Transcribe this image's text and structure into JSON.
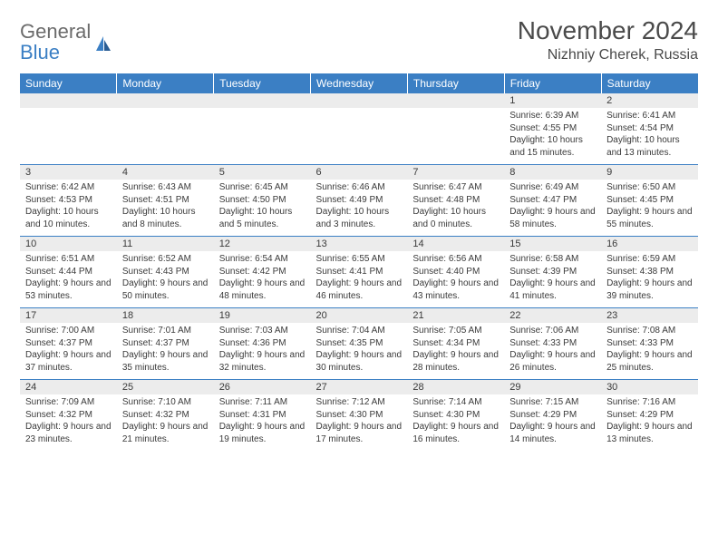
{
  "brand": {
    "line1": "General",
    "line2": "Blue"
  },
  "title": "November 2024",
  "location": "Nizhniy Cherek, Russia",
  "colors": {
    "header_bg": "#3b7fc4",
    "header_text": "#ffffff",
    "daynum_bg": "#ececec",
    "border": "#3b7fc4",
    "text": "#3a3a3a",
    "logo_gray": "#6b6b6b",
    "logo_blue": "#3b7fc4"
  },
  "weekdays": [
    "Sunday",
    "Monday",
    "Tuesday",
    "Wednesday",
    "Thursday",
    "Friday",
    "Saturday"
  ],
  "weeks": [
    [
      null,
      null,
      null,
      null,
      null,
      {
        "n": "1",
        "sr": "6:39 AM",
        "ss": "4:55 PM",
        "dl": "10 hours and 15 minutes."
      },
      {
        "n": "2",
        "sr": "6:41 AM",
        "ss": "4:54 PM",
        "dl": "10 hours and 13 minutes."
      }
    ],
    [
      {
        "n": "3",
        "sr": "6:42 AM",
        "ss": "4:53 PM",
        "dl": "10 hours and 10 minutes."
      },
      {
        "n": "4",
        "sr": "6:43 AM",
        "ss": "4:51 PM",
        "dl": "10 hours and 8 minutes."
      },
      {
        "n": "5",
        "sr": "6:45 AM",
        "ss": "4:50 PM",
        "dl": "10 hours and 5 minutes."
      },
      {
        "n": "6",
        "sr": "6:46 AM",
        "ss": "4:49 PM",
        "dl": "10 hours and 3 minutes."
      },
      {
        "n": "7",
        "sr": "6:47 AM",
        "ss": "4:48 PM",
        "dl": "10 hours and 0 minutes."
      },
      {
        "n": "8",
        "sr": "6:49 AM",
        "ss": "4:47 PM",
        "dl": "9 hours and 58 minutes."
      },
      {
        "n": "9",
        "sr": "6:50 AM",
        "ss": "4:45 PM",
        "dl": "9 hours and 55 minutes."
      }
    ],
    [
      {
        "n": "10",
        "sr": "6:51 AM",
        "ss": "4:44 PM",
        "dl": "9 hours and 53 minutes."
      },
      {
        "n": "11",
        "sr": "6:52 AM",
        "ss": "4:43 PM",
        "dl": "9 hours and 50 minutes."
      },
      {
        "n": "12",
        "sr": "6:54 AM",
        "ss": "4:42 PM",
        "dl": "9 hours and 48 minutes."
      },
      {
        "n": "13",
        "sr": "6:55 AM",
        "ss": "4:41 PM",
        "dl": "9 hours and 46 minutes."
      },
      {
        "n": "14",
        "sr": "6:56 AM",
        "ss": "4:40 PM",
        "dl": "9 hours and 43 minutes."
      },
      {
        "n": "15",
        "sr": "6:58 AM",
        "ss": "4:39 PM",
        "dl": "9 hours and 41 minutes."
      },
      {
        "n": "16",
        "sr": "6:59 AM",
        "ss": "4:38 PM",
        "dl": "9 hours and 39 minutes."
      }
    ],
    [
      {
        "n": "17",
        "sr": "7:00 AM",
        "ss": "4:37 PM",
        "dl": "9 hours and 37 minutes."
      },
      {
        "n": "18",
        "sr": "7:01 AM",
        "ss": "4:37 PM",
        "dl": "9 hours and 35 minutes."
      },
      {
        "n": "19",
        "sr": "7:03 AM",
        "ss": "4:36 PM",
        "dl": "9 hours and 32 minutes."
      },
      {
        "n": "20",
        "sr": "7:04 AM",
        "ss": "4:35 PM",
        "dl": "9 hours and 30 minutes."
      },
      {
        "n": "21",
        "sr": "7:05 AM",
        "ss": "4:34 PM",
        "dl": "9 hours and 28 minutes."
      },
      {
        "n": "22",
        "sr": "7:06 AM",
        "ss": "4:33 PM",
        "dl": "9 hours and 26 minutes."
      },
      {
        "n": "23",
        "sr": "7:08 AM",
        "ss": "4:33 PM",
        "dl": "9 hours and 25 minutes."
      }
    ],
    [
      {
        "n": "24",
        "sr": "7:09 AM",
        "ss": "4:32 PM",
        "dl": "9 hours and 23 minutes."
      },
      {
        "n": "25",
        "sr": "7:10 AM",
        "ss": "4:32 PM",
        "dl": "9 hours and 21 minutes."
      },
      {
        "n": "26",
        "sr": "7:11 AM",
        "ss": "4:31 PM",
        "dl": "9 hours and 19 minutes."
      },
      {
        "n": "27",
        "sr": "7:12 AM",
        "ss": "4:30 PM",
        "dl": "9 hours and 17 minutes."
      },
      {
        "n": "28",
        "sr": "7:14 AM",
        "ss": "4:30 PM",
        "dl": "9 hours and 16 minutes."
      },
      {
        "n": "29",
        "sr": "7:15 AM",
        "ss": "4:29 PM",
        "dl": "9 hours and 14 minutes."
      },
      {
        "n": "30",
        "sr": "7:16 AM",
        "ss": "4:29 PM",
        "dl": "9 hours and 13 minutes."
      }
    ]
  ],
  "labels": {
    "sunrise": "Sunrise:",
    "sunset": "Sunset:",
    "daylight": "Daylight:"
  }
}
